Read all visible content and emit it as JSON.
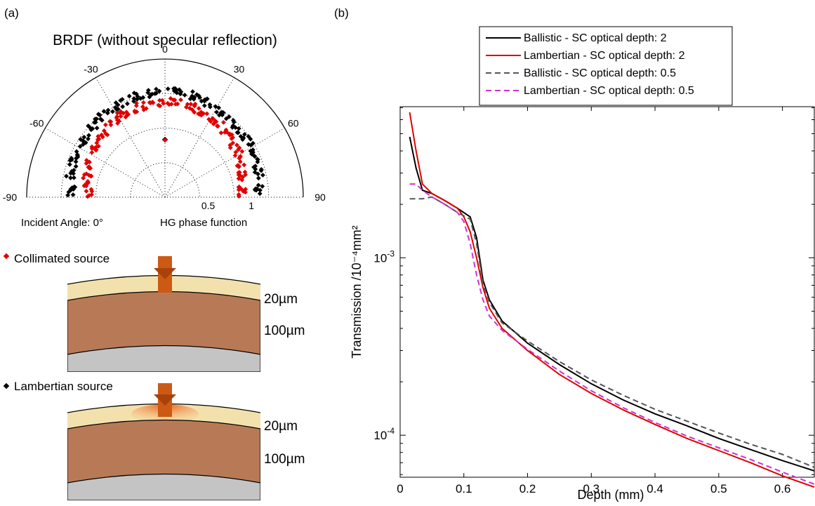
{
  "panel_a": {
    "panel_label": "(a)",
    "polar": {
      "title": "BRDF (without specular reflection)",
      "angle_ticks": [
        "-90",
        "-60",
        "-30",
        "0",
        "30",
        "60",
        "90"
      ],
      "radial_ticks": [
        "0.5",
        "1"
      ],
      "left_caption": "Incident Angle: 0°",
      "right_caption": "HG phase function"
    },
    "diagram": {
      "collimated_label": "Collimated source",
      "lambertian_label": "Lambertian source",
      "layer1_thickness": "20µm",
      "layer2_thickness": "100µm",
      "colors": {
        "top_layer": "#f3e1ad",
        "dermis": "#b87a56",
        "base": "#c4c4c4",
        "arrow": "#cc5a14"
      }
    }
  },
  "chart_data": [
    {
      "type": "scatter",
      "coordinate_system": "polar",
      "title": "BRDF (without specular reflection)",
      "theta_range": [
        -90,
        90
      ],
      "r_range": [
        0,
        1
      ],
      "series": [
        {
          "name": "Lambertian source",
          "color": "#000000",
          "theta": [
            -85,
            -75,
            -65,
            -55,
            -45,
            -35,
            -25,
            -15,
            -5,
            5,
            15,
            25,
            35,
            45,
            55,
            65,
            75,
            85
          ],
          "r": [
            0.68,
            0.7,
            0.71,
            0.72,
            0.73,
            0.74,
            0.75,
            0.76,
            0.76,
            0.76,
            0.76,
            0.75,
            0.74,
            0.73,
            0.72,
            0.71,
            0.7,
            0.68
          ]
        },
        {
          "name": "Collimated source",
          "color": "#e00000",
          "theta": [
            -85,
            -75,
            -65,
            -55,
            -45,
            -35,
            -25,
            -15,
            -5,
            5,
            15,
            25,
            35,
            45,
            55,
            65,
            75,
            85
          ],
          "r": [
            0.56,
            0.58,
            0.6,
            0.62,
            0.64,
            0.66,
            0.67,
            0.68,
            0.69,
            0.69,
            0.68,
            0.67,
            0.66,
            0.64,
            0.62,
            0.6,
            0.58,
            0.56
          ]
        }
      ]
    },
    {
      "type": "line",
      "panel_label": "(b)",
      "xlabel": "Depth (mm)",
      "ylabel": "Transmission /10⁻⁴mm²",
      "xlim": [
        0,
        0.65
      ],
      "ylim": [
        5.8e-05,
        0.0071
      ],
      "yscale": "log",
      "x_ticks": [
        "0",
        "0.1",
        "0.2",
        "0.3",
        "0.4",
        "0.5",
        "0.6"
      ],
      "y_ticks": [
        {
          "base": "10",
          "exp": "-3",
          "value": 0.001
        },
        {
          "base": "10",
          "exp": "-4",
          "value": 0.0001
        }
      ],
      "legend_position": "top",
      "series": [
        {
          "name": "Ballistic -  SC optical depth: 2",
          "color": "#000000",
          "dash": "solid",
          "x": [
            0.015,
            0.025,
            0.035,
            0.05,
            0.07,
            0.09,
            0.11,
            0.12,
            0.13,
            0.14,
            0.16,
            0.2,
            0.25,
            0.3,
            0.35,
            0.4,
            0.45,
            0.5,
            0.55,
            0.6,
            0.65
          ],
          "y": [
            0.0048,
            0.0032,
            0.0024,
            0.0023,
            0.0021,
            0.0019,
            0.0017,
            0.0013,
            0.00075,
            0.00058,
            0.00044,
            0.00033,
            0.00025,
            0.000195,
            0.000158,
            0.000132,
            0.000113,
            9.6e-05,
            8.3e-05,
            7.2e-05,
            6.3e-05
          ]
        },
        {
          "name": "Lambertian -  SC optical depth: 2",
          "color": "#e00000",
          "dash": "solid",
          "x": [
            0.015,
            0.025,
            0.035,
            0.05,
            0.07,
            0.09,
            0.1,
            0.11,
            0.12,
            0.13,
            0.14,
            0.16,
            0.2,
            0.25,
            0.3,
            0.35,
            0.4,
            0.45,
            0.5,
            0.55,
            0.6,
            0.65
          ],
          "y": [
            0.0066,
            0.004,
            0.0026,
            0.0023,
            0.0021,
            0.0019,
            0.0017,
            0.0014,
            0.001,
            0.00068,
            0.00052,
            0.0004,
            0.0003,
            0.00022,
            0.000172,
            0.000139,
            0.000115,
            9.6e-05,
            8.2e-05,
            7e-05,
            5.9e-05,
            5.1e-05
          ]
        },
        {
          "name": "Ballistic -  SC optical depth: 0.5",
          "color": "#555555",
          "dash": "8,5",
          "x": [
            0.015,
            0.025,
            0.035,
            0.05,
            0.07,
            0.09,
            0.11,
            0.12,
            0.13,
            0.14,
            0.16,
            0.2,
            0.25,
            0.3,
            0.35,
            0.4,
            0.45,
            0.5,
            0.55,
            0.6,
            0.65
          ],
          "y": [
            0.00215,
            0.00215,
            0.00215,
            0.0022,
            0.002,
            0.0018,
            0.00165,
            0.0012,
            0.00072,
            0.00056,
            0.00043,
            0.00034,
            0.00026,
            0.000205,
            0.000168,
            0.00014,
            0.00012,
            0.000103,
            8.9e-05,
            7.8e-05,
            6.6e-05
          ]
        },
        {
          "name": "Lambertian -  SC optical depth: 0.5",
          "color": "#cc33cc",
          "dash": "8,5",
          "x": [
            0.015,
            0.025,
            0.035,
            0.05,
            0.07,
            0.09,
            0.1,
            0.11,
            0.12,
            0.13,
            0.14,
            0.16,
            0.2,
            0.25,
            0.3,
            0.35,
            0.4,
            0.45,
            0.5,
            0.55,
            0.6,
            0.65
          ],
          "y": [
            0.0026,
            0.0026,
            0.0024,
            0.0022,
            0.002,
            0.0018,
            0.0016,
            0.0012,
            0.0008,
            0.00058,
            0.00047,
            0.00039,
            0.000305,
            0.00023,
            0.000178,
            0.000143,
            0.000118,
            9.9e-05,
            8.5e-05,
            7.3e-05,
            6.2e-05,
            5.3e-05
          ]
        }
      ]
    }
  ]
}
